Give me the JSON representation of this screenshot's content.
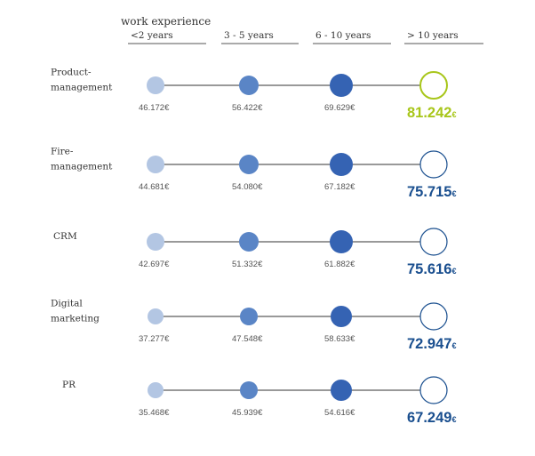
{
  "colors": {
    "level1": "#b3c6e3",
    "level2": "#5a85c6",
    "level3": "#3563b3",
    "top_blue": "#1a4f8f",
    "top_green": "#a8c61a",
    "line": "#333333",
    "value_text": "#555555",
    "header_text": "#333333"
  },
  "chart_data": {
    "type": "dot-matrix",
    "title": "work experience",
    "categories": [
      "<2 years",
      "3 - 5 years",
      "6 - 10 years",
      "> 10 years"
    ],
    "currency": "€",
    "roles": [
      {
        "label_lines": [
          "Product-",
          "management"
        ],
        "values": [
          "46.172",
          "56.422",
          "69.629",
          "81.242"
        ],
        "highlight": true
      },
      {
        "label_lines": [
          "Fire-",
          "management"
        ],
        "values": [
          "44.681",
          "54.080",
          "67.182",
          "75.715"
        ],
        "highlight": false
      },
      {
        "label_lines": [
          "CRM"
        ],
        "values": [
          "42.697",
          "51.332",
          "61.882",
          "75.616"
        ],
        "highlight": false
      },
      {
        "label_lines": [
          "Digital",
          "marketing"
        ],
        "values": [
          "37.277",
          "47.548",
          "58.633",
          "72.947"
        ],
        "highlight": false
      },
      {
        "label_lines": [
          "PR"
        ],
        "values": [
          "35.468",
          "45.939",
          "54.616",
          "67.249"
        ],
        "highlight": false
      }
    ]
  }
}
